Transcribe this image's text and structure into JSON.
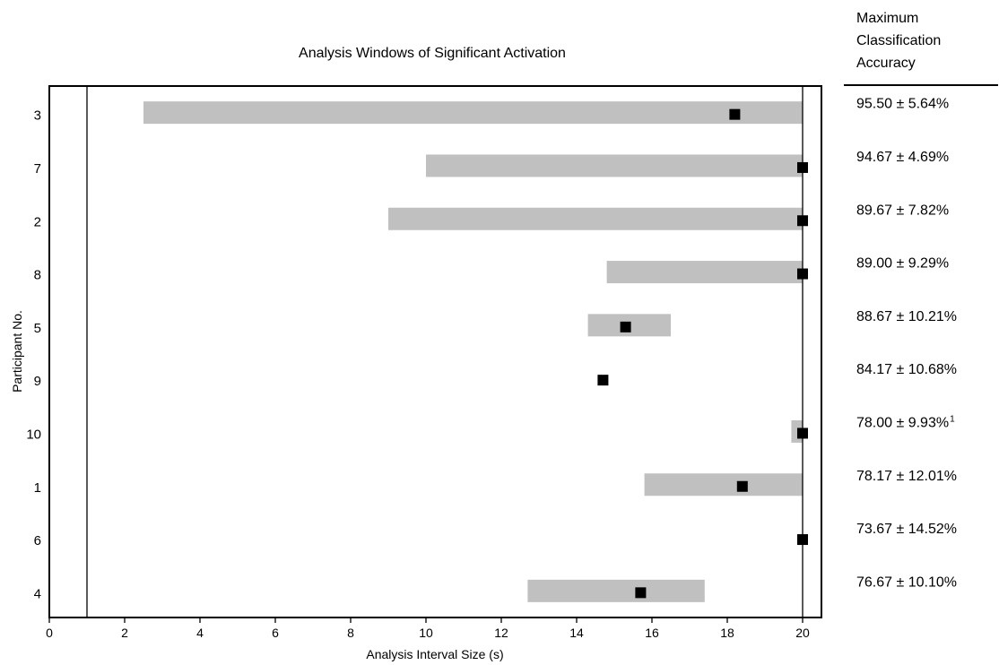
{
  "chart_data": {
    "type": "bar",
    "subtype": "horizontal-range-with-marker",
    "title": "Analysis Windows of Significant Activation",
    "xlabel": "Analysis Interval Size (s)",
    "ylabel": "Participant No.",
    "xlim": [
      0,
      20.5
    ],
    "xticks": [
      "0",
      "2",
      "4",
      "6",
      "8",
      "10",
      "12",
      "14",
      "16",
      "18",
      "20"
    ],
    "reference_lines_x": [
      1,
      20
    ],
    "bar_color": "#c0c0c0",
    "marker_color": "#000000",
    "accuracy_header": [
      "Maximum",
      "Classification",
      "Accuracy"
    ],
    "rows": [
      {
        "participant": "3",
        "window": [
          2.5,
          20
        ],
        "max_at": 18.2,
        "accuracy": "95.50 ± 5.64%",
        "note": ""
      },
      {
        "participant": "7",
        "window": [
          10.0,
          20
        ],
        "max_at": 20.0,
        "accuracy": "94.67 ± 4.69%",
        "note": ""
      },
      {
        "participant": "2",
        "window": [
          9.0,
          20
        ],
        "max_at": 20.0,
        "accuracy": "89.67 ± 7.82%",
        "note": ""
      },
      {
        "participant": "8",
        "window": [
          14.8,
          20
        ],
        "max_at": 20.0,
        "accuracy": "89.00 ± 9.29%",
        "note": ""
      },
      {
        "participant": "5",
        "window": [
          14.3,
          16.5
        ],
        "max_at": 15.3,
        "accuracy": "88.67 ± 10.21%",
        "note": ""
      },
      {
        "participant": "9",
        "window": null,
        "max_at": 14.7,
        "accuracy": "84.17 ± 10.68%",
        "note": ""
      },
      {
        "participant": "10",
        "window": [
          19.7,
          20
        ],
        "max_at": 20.0,
        "accuracy": "78.00 ± 9.93%",
        "note": "1"
      },
      {
        "participant": "1",
        "window": [
          15.8,
          20
        ],
        "max_at": 18.4,
        "accuracy": "78.17 ± 12.01%",
        "note": ""
      },
      {
        "participant": "6",
        "window": null,
        "max_at": 20.0,
        "accuracy": "73.67 ± 14.52%",
        "note": ""
      },
      {
        "participant": "4",
        "window": [
          12.7,
          17.4
        ],
        "max_at": 15.7,
        "accuracy": "76.67 ± 10.10%",
        "note": ""
      }
    ]
  }
}
